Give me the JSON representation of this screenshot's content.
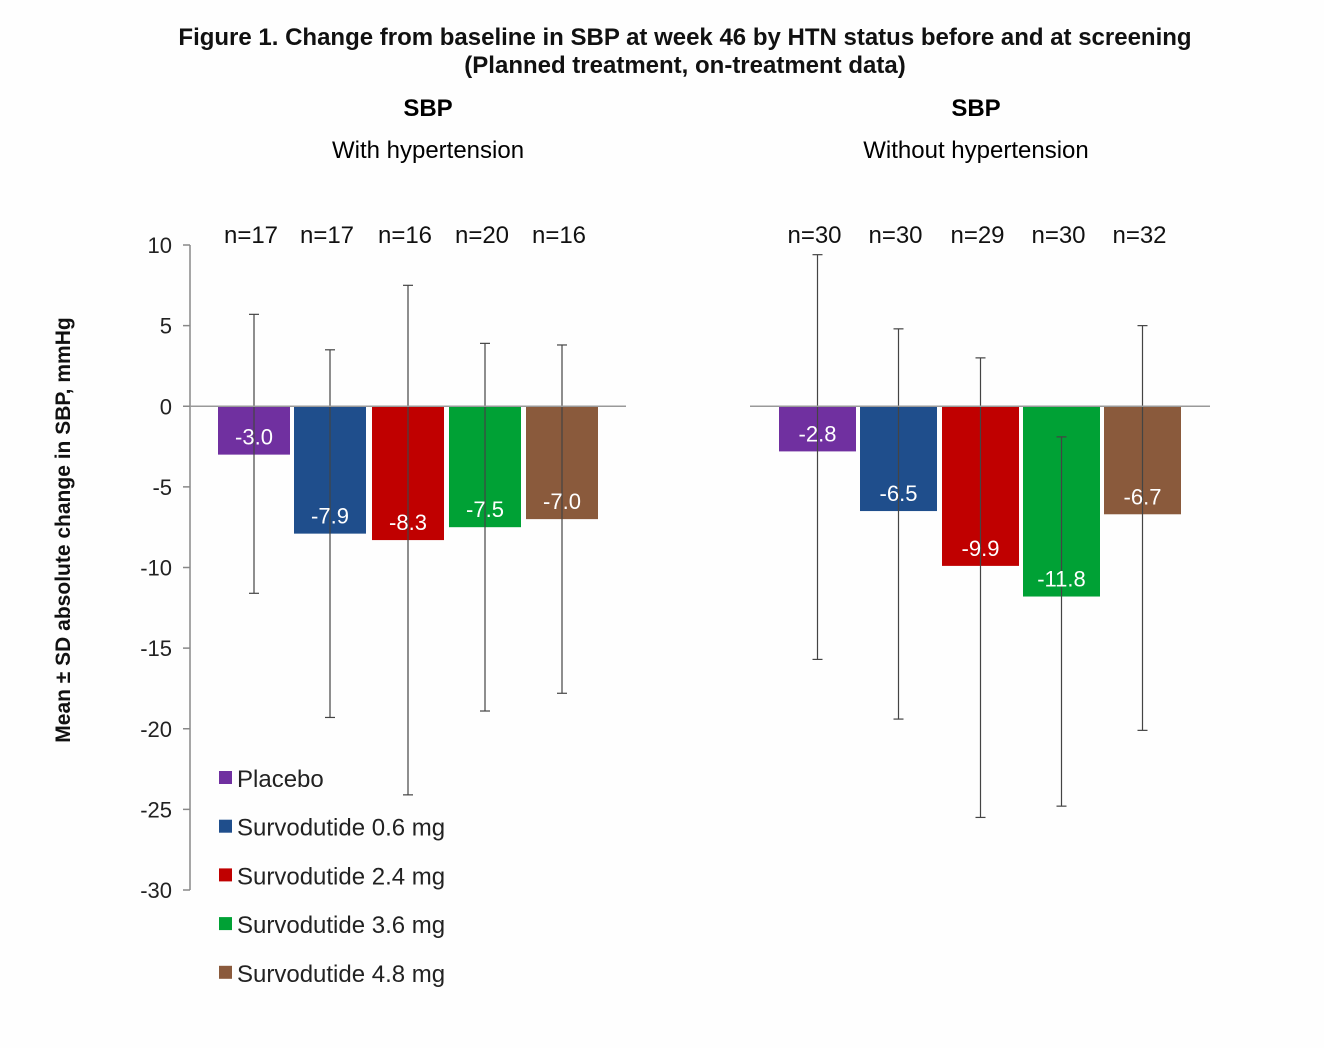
{
  "figure": {
    "title_line1": "Figure 1. Change from baseline in SBP at week 46 by HTN status before and at screening",
    "title_line2": "(Planned treatment, on-treatment data)"
  },
  "ylabel": "Mean ± SD absolute change in SBP, mmHg",
  "legend": {
    "placement": "bottom-left",
    "items": [
      {
        "name": "Placebo",
        "color": "#7030a0"
      },
      {
        "name": "Survodutide 0.6 mg",
        "color": "#1f4e8c"
      },
      {
        "name": "Survodutide 2.4 mg",
        "color": "#c00000"
      },
      {
        "name": "Survodutide 3.6 mg",
        "color": "#00a135"
      },
      {
        "name": "Survodutide 4.8 mg",
        "color": "#8a5a3c"
      }
    ]
  },
  "chart_data": [
    {
      "type": "bar",
      "title": "SBP",
      "subtitle": "With hypertension",
      "ylabel": "Mean ± SD absolute change in SBP, mmHg",
      "ylim": [
        -30,
        10
      ],
      "yticks": [
        10,
        5,
        0,
        -5,
        -10,
        -15,
        -20,
        -25,
        -30
      ],
      "grid": false,
      "categories": [
        "Placebo",
        "Survodutide 0.6 mg",
        "Survodutide 2.4 mg",
        "Survodutide 3.6 mg",
        "Survodutide 4.8 mg"
      ],
      "n_labels": [
        "n=17",
        "n=17",
        "n=16",
        "n=20",
        "n=16"
      ],
      "value_labels": [
        "-3.0",
        "-7.9",
        "-8.3",
        "-7.5",
        "-7.0"
      ],
      "values": [
        -3.0,
        -7.9,
        -8.3,
        -7.5,
        -7.0
      ],
      "error_low": [
        -11.6,
        -19.3,
        -24.1,
        -18.9,
        -17.8
      ],
      "error_high": [
        5.7,
        3.5,
        7.5,
        3.9,
        3.8
      ]
    },
    {
      "type": "bar",
      "title": "SBP",
      "subtitle": "Without hypertension",
      "ylim": [
        -30,
        10
      ],
      "grid": false,
      "categories": [
        "Placebo",
        "Survodutide 0.6 mg",
        "Survodutide 2.4 mg",
        "Survodutide 3.6 mg",
        "Survodutide 4.8 mg"
      ],
      "n_labels": [
        "n=30",
        "n=30",
        "n=29",
        "n=30",
        "n=32"
      ],
      "value_labels": [
        "-2.8",
        "-6.5",
        "-9.9",
        "-11.8",
        "-6.7"
      ],
      "values": [
        -2.8,
        -6.5,
        -9.9,
        -11.8,
        -6.7
      ],
      "error_low": [
        -15.7,
        -19.4,
        -25.5,
        -24.8,
        -20.1
      ],
      "error_high": [
        9.4,
        4.8,
        3.0,
        -1.9,
        5.0
      ]
    }
  ]
}
